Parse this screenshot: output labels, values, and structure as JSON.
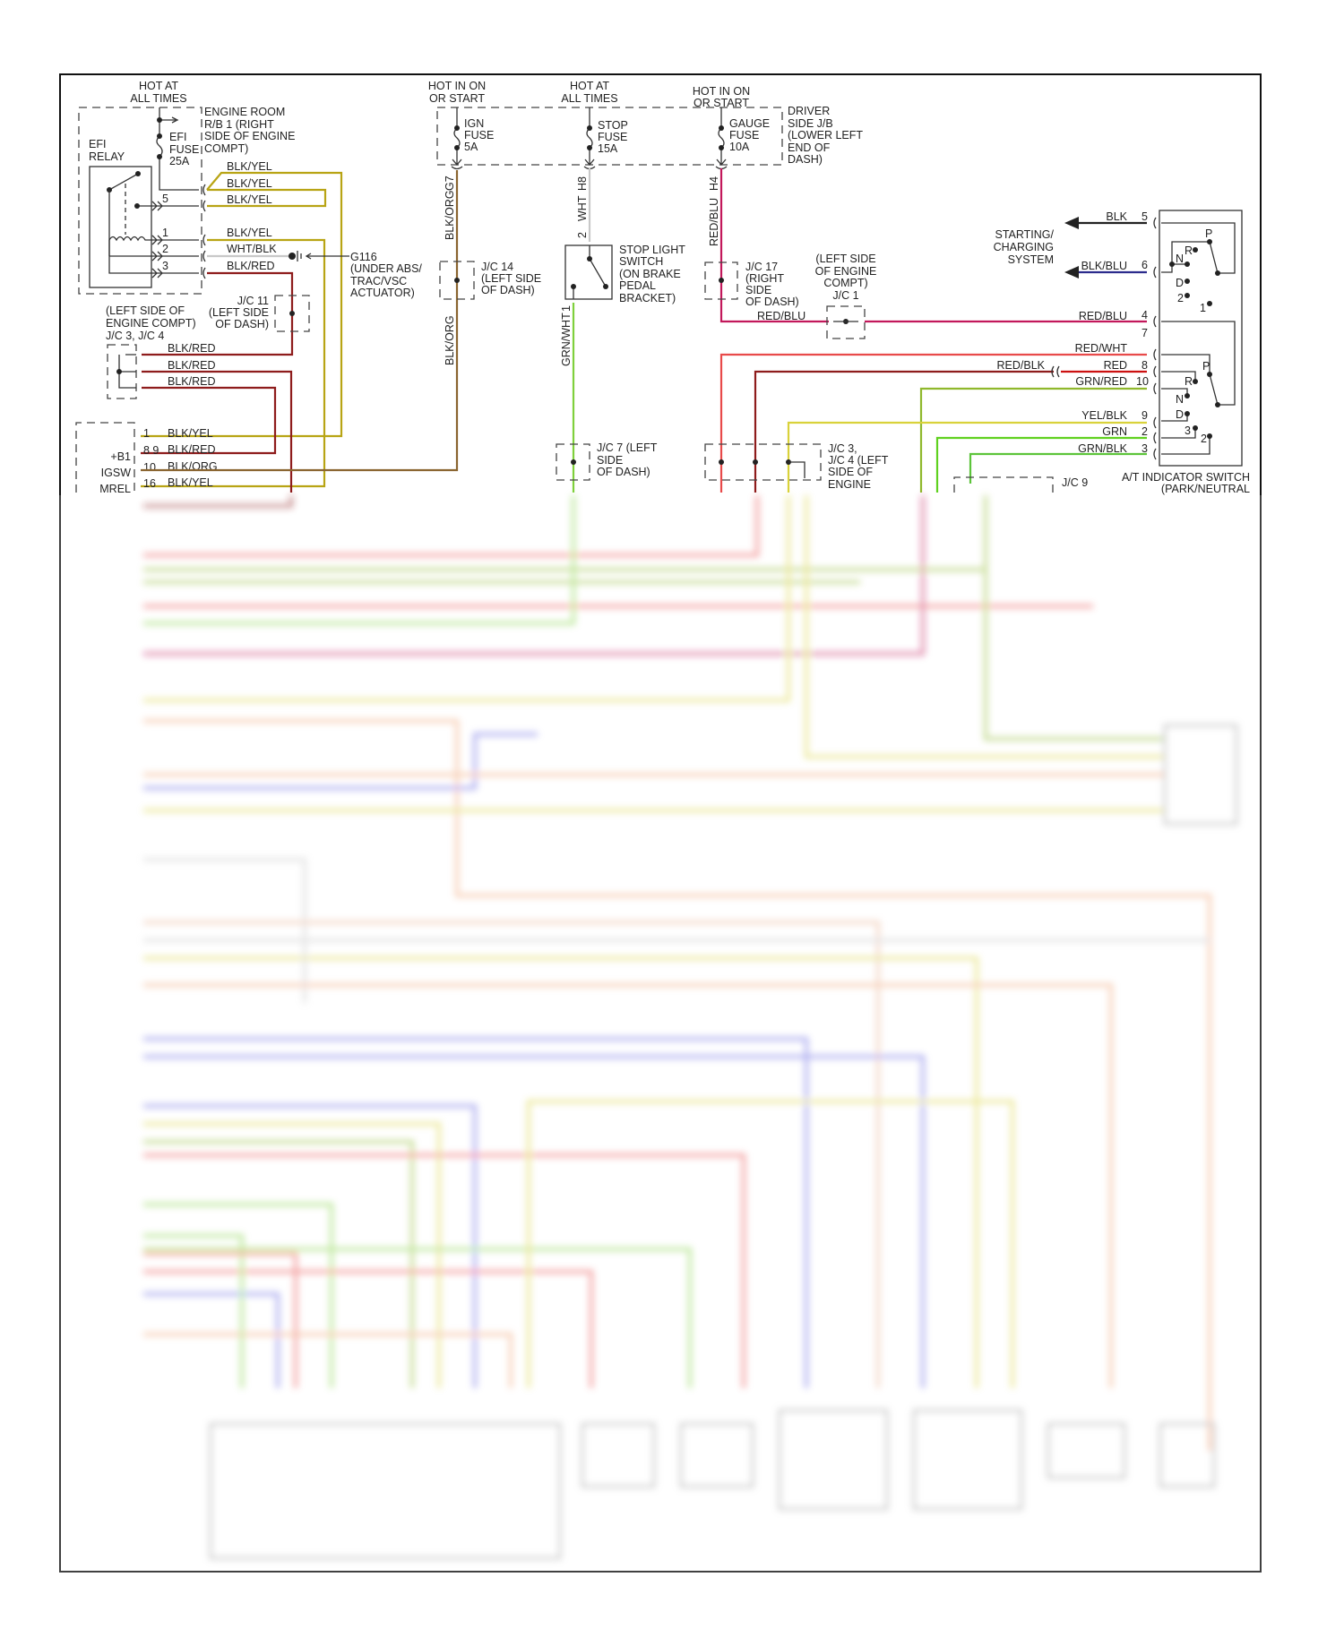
{
  "diagram": {
    "efi_hot": [
      "HOT AT",
      "ALL TIMES"
    ],
    "ign_hot": [
      "HOT IN ON",
      "OR START"
    ],
    "stop_hot": [
      "HOT AT",
      "ALL TIMES"
    ],
    "gauge_hot": [
      "HOT IN ON",
      "OR START"
    ],
    "engine_room_rb": [
      "ENGINE ROOM",
      "R/B 1 (RIGHT",
      "SIDE OF ENGINE",
      "COMPT)"
    ],
    "efi_fuse": [
      "EFI",
      "FUSE",
      "25A"
    ],
    "efi_relay": [
      "EFI",
      "RELAY"
    ],
    "relay_pins": [
      "5",
      "1",
      "2",
      "3"
    ],
    "g116": [
      "G116",
      "(UNDER ABS/",
      "TRAC/VSC",
      "ACTUATOR)"
    ],
    "jc11": [
      "J/C 11",
      "(LEFT SIDE",
      "OF DASH)"
    ],
    "jc3_jc4_left": [
      "(LEFT SIDE OF",
      "ENGINE COMPT)",
      "J/C 3, J/C 4"
    ],
    "ecm_pins": [
      "1",
      "8 9",
      "10",
      "16"
    ],
    "ecm_terminals": [
      "+B1",
      "IGSW",
      "MREL"
    ],
    "ign_fuse": [
      "IGN",
      "FUSE",
      "5A"
    ],
    "stop_fuse": [
      "STOP",
      "FUSE",
      "15A"
    ],
    "gauge_fuse": [
      "GAUGE",
      "FUSE",
      "10A"
    ],
    "driver_jb": [
      "DRIVER",
      "SIDE J/B",
      "(LOWER LEFT",
      "END OF",
      "DASH)"
    ],
    "connector_ids": {
      "g7": "G7",
      "h8": "H8",
      "h4": "H4",
      "stop_pin2": "2",
      "stop_pin1": "1"
    },
    "jc14": [
      "J/C 14",
      "(LEFT SIDE",
      "OF DASH)"
    ],
    "stop_light_switch": [
      "STOP LIGHT",
      "SWITCH",
      "(ON BRAKE",
      "PEDAL",
      "BRACKET)"
    ],
    "jc7": [
      "J/C 7 (LEFT",
      "SIDE",
      "OF DASH)"
    ],
    "jc17": [
      "J/C 17",
      "(RIGHT",
      "SIDE",
      "OF DASH)"
    ],
    "jc1": [
      "(LEFT SIDE",
      "OF ENGINE",
      "COMPT)",
      "J/C 1"
    ],
    "jc3_jc4_right": [
      "J/C 3,",
      "J/C 4 (LEFT",
      "SIDE OF",
      "ENGINE"
    ],
    "jc9": "J/C 9",
    "starting_charging": [
      "STARTING/",
      "CHARGING",
      "SYSTEM"
    ],
    "at_switch": [
      "A/T INDICATOR SWITCH",
      "(PARK/NEUTRAL"
    ],
    "at_switch_pins": [
      "5",
      "6",
      "4",
      "7",
      "8",
      "10",
      "9",
      "2",
      "3"
    ],
    "at_switch_positions_upper": [
      "P",
      "R",
      "N",
      "D",
      "2",
      "1"
    ],
    "at_switch_positions_lower": [
      "P",
      "R",
      "N",
      "D",
      "3",
      "2"
    ],
    "wires": {
      "blk_yel": "BLK/YEL",
      "wht_blk": "WHT/BLK",
      "blk_red": "BLK/RED",
      "blk_org": "BLK/ORG",
      "wht": "WHT",
      "grn_wht": "GRN/WHT",
      "red_blu": "RED/BLU",
      "blk": "BLK",
      "blk_blu": "BLK/BLU",
      "red_wht": "RED/WHT",
      "red_blk": "RED/BLK",
      "red": "RED",
      "grn_red": "GRN/RED",
      "yel_blk": "YEL/BLK",
      "grn": "GRN",
      "grn_blk": "GRN/BLK"
    },
    "colors": {
      "blk_yel": "#b8a414",
      "blk_red": "#8e1c1c",
      "blk_org": "#8a6530",
      "wht": "#c8c8c8",
      "grn_wht": "#7fd03c",
      "red_blu": "#c2185b",
      "red_wht": "#e84a4a",
      "red": "#cc1111",
      "grn_red": "#8fb82c",
      "yel_blk": "#d9d23a",
      "grn": "#5fd11f",
      "grn_blk": "#5cc43a",
      "blk_blu": "#2b2b8c"
    }
  }
}
